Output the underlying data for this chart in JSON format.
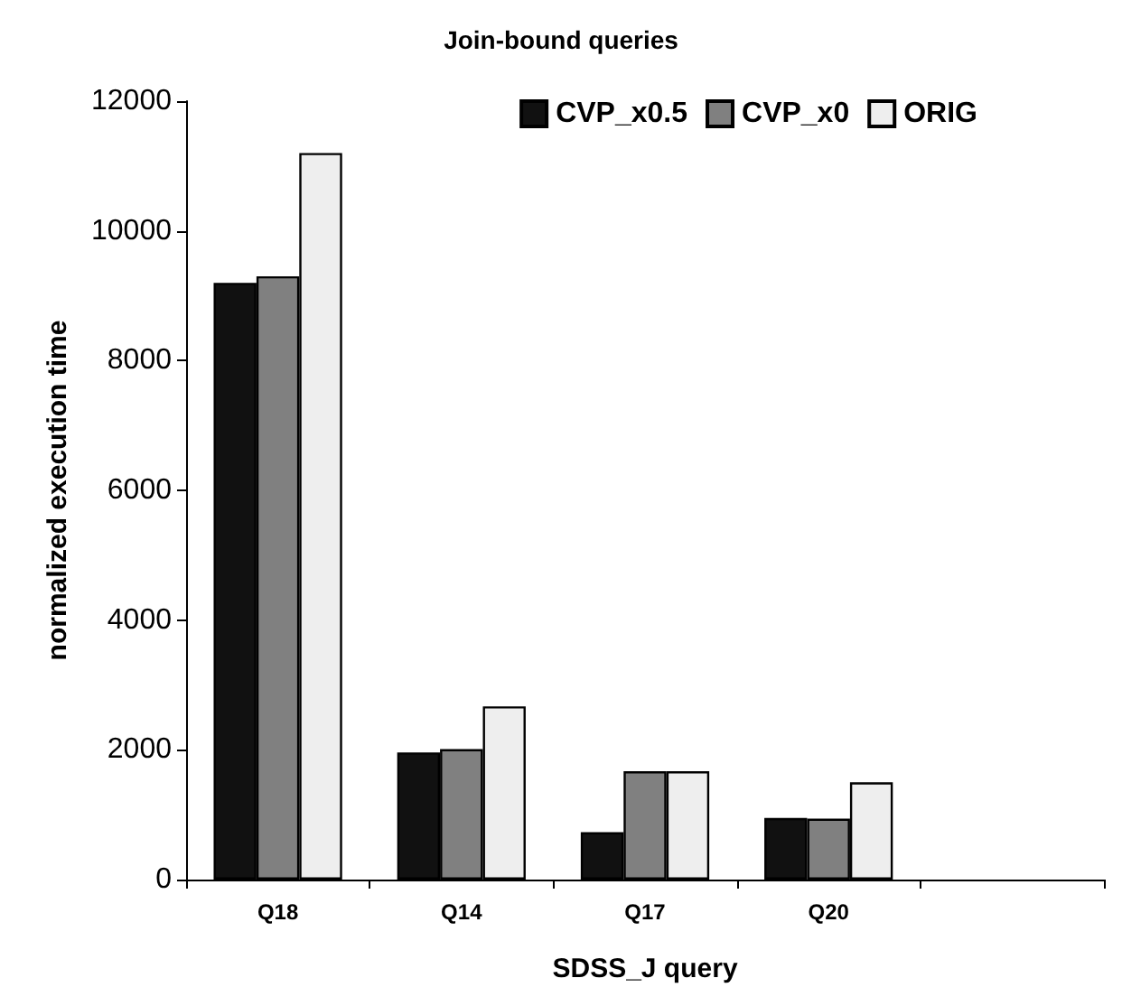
{
  "chart_data": {
    "type": "bar",
    "title": "Join-bound queries",
    "xlabel": "SDSS_J query",
    "ylabel": "normalized execution time",
    "categories": [
      "Q18",
      "Q14",
      "Q17",
      "Q20",
      null
    ],
    "series": [
      {
        "name": "CVP_x0.5",
        "color": "#111111",
        "values": [
          9200,
          1960,
          730,
          950,
          null
        ]
      },
      {
        "name": "CVP_x0",
        "color": "#808080",
        "values": [
          9300,
          2010,
          1670,
          940,
          null
        ]
      },
      {
        "name": "ORIG",
        "color": "#eeeeee",
        "values": [
          11200,
          2670,
          1670,
          1500,
          null
        ]
      }
    ],
    "ylim": [
      0,
      12000
    ],
    "yticks": [
      0,
      2000,
      4000,
      6000,
      8000,
      10000,
      12000
    ],
    "grid": false,
    "legend": "top right"
  }
}
